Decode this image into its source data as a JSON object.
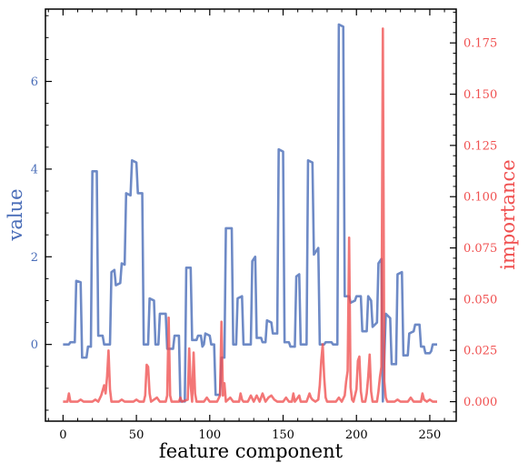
{
  "chart_data": {
    "type": "line",
    "xlabel": "feature component",
    "ylabel_left": "value",
    "ylabel_right": "importance",
    "xlim": [
      -12,
      268
    ],
    "ylim_left": [
      -1.75,
      7.65
    ],
    "ylim_right": [
      -0.0095,
      0.1915
    ],
    "xticks": [
      0,
      50,
      100,
      150,
      200,
      250
    ],
    "xtick_labels": [
      "0",
      "50",
      "100",
      "150",
      "200",
      "250"
    ],
    "yticks_left": [
      0,
      2,
      4,
      6
    ],
    "ytick_labels_left": [
      "0",
      "2",
      "4",
      "6"
    ],
    "yticks_right": [
      0.0,
      0.025,
      0.05,
      0.075,
      0.1,
      0.125,
      0.15,
      0.175
    ],
    "ytick_labels_right": [
      "0.000",
      "0.025",
      "0.050",
      "0.075",
      "0.100",
      "0.125",
      "0.150",
      "0.175"
    ],
    "colors": {
      "value": "#4a6db8",
      "importance": "#f05050",
      "axis": "#000000"
    },
    "series": [
      {
        "key": "value",
        "axis": "left",
        "points": [
          [
            0,
            0
          ],
          [
            4,
            0
          ],
          [
            5,
            0.05
          ],
          [
            8,
            0.05
          ],
          [
            9,
            1.45
          ],
          [
            12,
            1.42
          ],
          [
            13,
            -0.3
          ],
          [
            16,
            -0.3
          ],
          [
            17,
            -0.05
          ],
          [
            19,
            -0.05
          ],
          [
            20,
            3.95
          ],
          [
            23,
            3.95
          ],
          [
            24,
            0.2
          ],
          [
            27,
            0.2
          ],
          [
            28,
            0
          ],
          [
            32,
            0
          ],
          [
            33,
            1.65
          ],
          [
            35,
            1.7
          ],
          [
            36,
            1.35
          ],
          [
            39,
            1.4
          ],
          [
            40,
            1.85
          ],
          [
            42,
            1.82
          ],
          [
            43,
            3.45
          ],
          [
            46,
            3.4
          ],
          [
            47,
            4.2
          ],
          [
            50,
            4.15
          ],
          [
            51,
            3.45
          ],
          [
            54,
            3.45
          ],
          [
            55,
            0
          ],
          [
            58,
            0
          ],
          [
            59,
            1.05
          ],
          [
            62,
            1
          ],
          [
            63,
            0
          ],
          [
            65,
            0
          ],
          [
            66,
            0.7
          ],
          [
            70,
            0.7
          ],
          [
            71,
            -0.1
          ],
          [
            75,
            -0.1
          ],
          [
            76,
            0.2
          ],
          [
            79,
            0.2
          ],
          [
            80,
            -1.3
          ],
          [
            83,
            -1.3
          ],
          [
            84,
            1.75
          ],
          [
            87,
            1.75
          ],
          [
            88,
            0.1
          ],
          [
            91,
            0.1
          ],
          [
            92,
            0.2
          ],
          [
            94,
            0.2
          ],
          [
            95,
            -0.05
          ],
          [
            96,
            0
          ],
          [
            97,
            0.25
          ],
          [
            100,
            0.2
          ],
          [
            101,
            0
          ],
          [
            103,
            0
          ],
          [
            104,
            -1.15
          ],
          [
            107,
            -1.15
          ],
          [
            108,
            -0.3
          ],
          [
            110,
            -0.3
          ],
          [
            111,
            2.65
          ],
          [
            115,
            2.65
          ],
          [
            116,
            0
          ],
          [
            118,
            0
          ],
          [
            119,
            1.05
          ],
          [
            122,
            1.1
          ],
          [
            123,
            0
          ],
          [
            128,
            0
          ],
          [
            129,
            1.9
          ],
          [
            131,
            2
          ],
          [
            132,
            0.15
          ],
          [
            135,
            0.15
          ],
          [
            136,
            0.05
          ],
          [
            138,
            0.05
          ],
          [
            139,
            0.55
          ],
          [
            142,
            0.5
          ],
          [
            143,
            0.25
          ],
          [
            146,
            0.25
          ],
          [
            147,
            4.45
          ],
          [
            150,
            4.4
          ],
          [
            151,
            0.05
          ],
          [
            154,
            0.05
          ],
          [
            155,
            -0.05
          ],
          [
            158,
            -0.05
          ],
          [
            159,
            1.55
          ],
          [
            161,
            1.6
          ],
          [
            162,
            0
          ],
          [
            166,
            0
          ],
          [
            167,
            4.2
          ],
          [
            170,
            4.15
          ],
          [
            171,
            2.05
          ],
          [
            174,
            2.2
          ],
          [
            175,
            0
          ],
          [
            178,
            0
          ],
          [
            179,
            0.05
          ],
          [
            183,
            0.05
          ],
          [
            184,
            0
          ],
          [
            187,
            0
          ],
          [
            188,
            7.3
          ],
          [
            191,
            7.25
          ],
          [
            192,
            1.1
          ],
          [
            195,
            1.1
          ],
          [
            196,
            0.95
          ],
          [
            199,
            1
          ],
          [
            200,
            1.1
          ],
          [
            203,
            1.1
          ],
          [
            204,
            0.3
          ],
          [
            207,
            0.3
          ],
          [
            208,
            1.1
          ],
          [
            210,
            1
          ],
          [
            211,
            0.4
          ],
          [
            214,
            0.5
          ],
          [
            215,
            1.85
          ],
          [
            217,
            1.95
          ],
          [
            218,
            -1.3
          ],
          [
            220,
            0.7
          ],
          [
            223,
            0.6
          ],
          [
            224,
            -0.45
          ],
          [
            227,
            -0.45
          ],
          [
            228,
            1.6
          ],
          [
            231,
            1.65
          ],
          [
            232,
            -0.25
          ],
          [
            235,
            -0.25
          ],
          [
            236,
            0.25
          ],
          [
            239,
            0.3
          ],
          [
            240,
            0.45
          ],
          [
            243,
            0.45
          ],
          [
            244,
            -0.05
          ],
          [
            246,
            -0.05
          ],
          [
            247,
            -0.2
          ],
          [
            250,
            -0.2
          ],
          [
            251,
            -0.15
          ],
          [
            252,
            0
          ],
          [
            255,
            0
          ]
        ]
      },
      {
        "key": "importance",
        "axis": "right",
        "points": [
          [
            0,
            0
          ],
          [
            3,
            0
          ],
          [
            4,
            0.004
          ],
          [
            5,
            0
          ],
          [
            10,
            0
          ],
          [
            12,
            0.001
          ],
          [
            14,
            0
          ],
          [
            20,
            0
          ],
          [
            22,
            0.001
          ],
          [
            24,
            0
          ],
          [
            26,
            0.003
          ],
          [
            28,
            0.008
          ],
          [
            29,
            0.004
          ],
          [
            30,
            0.012
          ],
          [
            31,
            0.025
          ],
          [
            32,
            0.006
          ],
          [
            33,
            0
          ],
          [
            38,
            0
          ],
          [
            40,
            0.001
          ],
          [
            42,
            0
          ],
          [
            48,
            0
          ],
          [
            50,
            0.001
          ],
          [
            52,
            0
          ],
          [
            55,
            0
          ],
          [
            56,
            0.003
          ],
          [
            57,
            0.018
          ],
          [
            58,
            0.017
          ],
          [
            59,
            0.004
          ],
          [
            60,
            0
          ],
          [
            64,
            0.002
          ],
          [
            66,
            0
          ],
          [
            70,
            0
          ],
          [
            71,
            0.003
          ],
          [
            72,
            0.041
          ],
          [
            73,
            0.003
          ],
          [
            74,
            0
          ],
          [
            79,
            0
          ],
          [
            80,
            0.002
          ],
          [
            81,
            0
          ],
          [
            85,
            0.001
          ],
          [
            86,
            0.026
          ],
          [
            87,
            0.008
          ],
          [
            88,
            0
          ],
          [
            89,
            0.024
          ],
          [
            90,
            0.004
          ],
          [
            91,
            0
          ],
          [
            96,
            0
          ],
          [
            98,
            0.002
          ],
          [
            100,
            0
          ],
          [
            105,
            0
          ],
          [
            107,
            0.003
          ],
          [
            108,
            0.039
          ],
          [
            109,
            0.003
          ],
          [
            110,
            0.009
          ],
          [
            111,
            0
          ],
          [
            114,
            0.002
          ],
          [
            116,
            0
          ],
          [
            120,
            0
          ],
          [
            121,
            0.004
          ],
          [
            122,
            0.001
          ],
          [
            123,
            0
          ],
          [
            126,
            0
          ],
          [
            128,
            0.003
          ],
          [
            130,
            0
          ],
          [
            132,
            0.003
          ],
          [
            134,
            0
          ],
          [
            136,
            0.004
          ],
          [
            138,
            0
          ],
          [
            140,
            0.002
          ],
          [
            142,
            0.003
          ],
          [
            144,
            0.001
          ],
          [
            146,
            0
          ],
          [
            150,
            0
          ],
          [
            152,
            0.002
          ],
          [
            154,
            0
          ],
          [
            156,
            0
          ],
          [
            157,
            0.004
          ],
          [
            158,
            0
          ],
          [
            161,
            0.003
          ],
          [
            162,
            0
          ],
          [
            166,
            0
          ],
          [
            168,
            0.004
          ],
          [
            169,
            0.002
          ],
          [
            170,
            0.001
          ],
          [
            172,
            0
          ],
          [
            174,
            0.001
          ],
          [
            175,
            0.008
          ],
          [
            176,
            0.02
          ],
          [
            177,
            0.028
          ],
          [
            178,
            0.012
          ],
          [
            179,
            0.002
          ],
          [
            180,
            0
          ],
          [
            186,
            0
          ],
          [
            188,
            0.002
          ],
          [
            190,
            0
          ],
          [
            192,
            0.003
          ],
          [
            193,
            0.01
          ],
          [
            194,
            0.015
          ],
          [
            195,
            0.08
          ],
          [
            196,
            0.007
          ],
          [
            197,
            0.001
          ],
          [
            198,
            0
          ],
          [
            200,
            0.006
          ],
          [
            201,
            0.02
          ],
          [
            202,
            0.022
          ],
          [
            203,
            0.005
          ],
          [
            204,
            0
          ],
          [
            206,
            0
          ],
          [
            207,
            0.004
          ],
          [
            208,
            0.012
          ],
          [
            209,
            0.023
          ],
          [
            210,
            0.005
          ],
          [
            211,
            0
          ],
          [
            214,
            0
          ],
          [
            215,
            0.005
          ],
          [
            216,
            0.012
          ],
          [
            217,
            0.017
          ],
          [
            218,
            0.182
          ],
          [
            219,
            0.01
          ],
          [
            220,
            0.002
          ],
          [
            221,
            0
          ],
          [
            226,
            0
          ],
          [
            228,
            0.001
          ],
          [
            230,
            0
          ],
          [
            235,
            0
          ],
          [
            237,
            0.002
          ],
          [
            239,
            0
          ],
          [
            244,
            0
          ],
          [
            245,
            0.004
          ],
          [
            246,
            0.001
          ],
          [
            248,
            0
          ],
          [
            250,
            0.001
          ],
          [
            252,
            0
          ],
          [
            255,
            0
          ]
        ]
      }
    ]
  }
}
